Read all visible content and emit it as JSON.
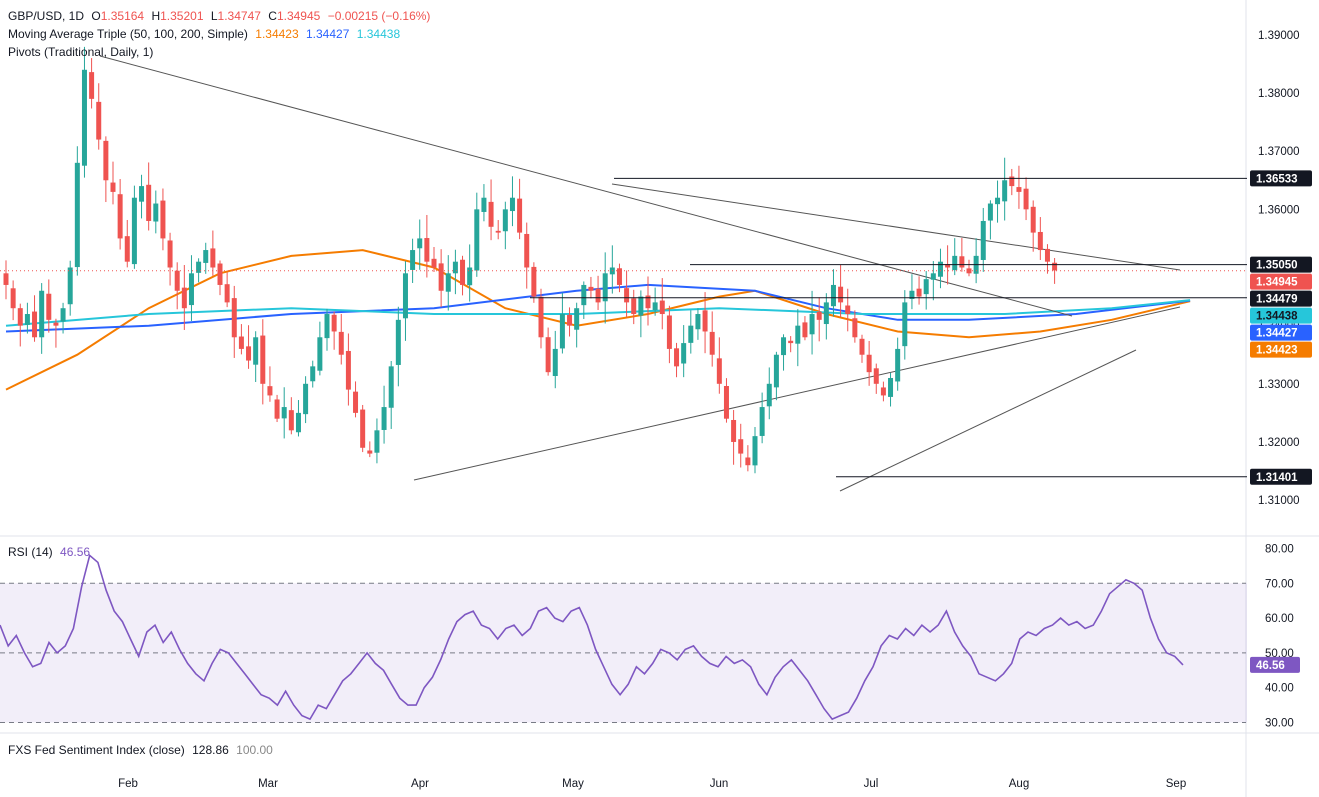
{
  "header": {
    "symbol": "GBP/USD, 1D",
    "o_label": "O",
    "o_value": "1.35164",
    "h_label": "H",
    "h_value": "1.35201",
    "l_label": "L",
    "l_value": "1.34747",
    "c_label": "C",
    "c_value": "1.34945",
    "change": "−0.00215 (−0.16%)",
    "ma_label": "Moving Average Triple (50, 100, 200, Simple)",
    "ma50_value": "1.34423",
    "ma100_value": "1.34427",
    "ma200_value": "1.34438",
    "pivots_label": "Pivots (Traditional, Daily, 1)",
    "rsi_label": "RSI (14)",
    "rsi_value": "46.56",
    "fxs_label": "FXS Fed Sentiment Index (close)",
    "fxs_close": "128.86",
    "fxs_level": "100.00"
  },
  "colors": {
    "up": "#26a69a",
    "down": "#ef5350",
    "ma50": "#f57c00",
    "ma100": "#2962ff",
    "ma200": "#26c6da",
    "rsi": "#7e57c2",
    "pivot": "#131722",
    "tag_dark": "#131722"
  },
  "price_tags": [
    {
      "label": "1.36533",
      "value": 1.36533,
      "style": "dark"
    },
    {
      "label": "1.35050",
      "value": 1.3505,
      "style": "dark"
    },
    {
      "label": "1.34945",
      "value": 1.34945,
      "style": "red"
    },
    {
      "label": "1.34479",
      "value": 1.34479,
      "style": "dark"
    },
    {
      "label": "1.34438",
      "value": 1.34438,
      "style": "ma200"
    },
    {
      "label": "1.34427",
      "value": 1.34427,
      "style": "ma100"
    },
    {
      "label": "1.34423",
      "value": 1.34423,
      "style": "ma50"
    },
    {
      "label": "1.31401",
      "value": 1.31401,
      "style": "dark"
    }
  ],
  "rsi_tag": {
    "label": "46.56",
    "value": 46.56
  },
  "chart_data": [
    {
      "type": "candlestick",
      "title": "GBP/USD, 1D",
      "x_ticks": [
        "Feb",
        "Mar",
        "Apr",
        "May",
        "Jun",
        "Jul",
        "Aug",
        "Sep"
      ],
      "y_ticks": [
        "1.39000",
        "1.38000",
        "1.37000",
        "1.36000",
        "1.35000",
        "1.34000",
        "1.33000",
        "1.32000",
        "1.31000"
      ],
      "y_tick_values": [
        1.39,
        1.38,
        1.37,
        1.36,
        1.35,
        1.34,
        1.33,
        1.32,
        1.31
      ],
      "ylim": [
        1.304,
        1.396
      ],
      "candle_count": 166,
      "candle_close_path": [
        1.347,
        1.343,
        1.34,
        1.342,
        1.338,
        1.346,
        1.341,
        1.34,
        1.343,
        1.35,
        1.368,
        1.384,
        1.379,
        1.372,
        1.365,
        1.363,
        1.355,
        1.351,
        1.362,
        1.364,
        1.358,
        1.361,
        1.355,
        1.35,
        1.346,
        1.343,
        1.349,
        1.351,
        1.353,
        1.35,
        1.347,
        1.344,
        1.338,
        1.336,
        1.334,
        1.338,
        1.33,
        1.328,
        1.324,
        1.326,
        1.322,
        1.325,
        1.33,
        1.333,
        1.338,
        1.342,
        1.339,
        1.335,
        1.329,
        1.325,
        1.319,
        1.318,
        1.322,
        1.326,
        1.333,
        1.341,
        1.349,
        1.353,
        1.355,
        1.351,
        1.35,
        1.346,
        1.349,
        1.351,
        1.347,
        1.35,
        1.36,
        1.362,
        1.357,
        1.356,
        1.36,
        1.362,
        1.356,
        1.35,
        1.345,
        1.338,
        1.332,
        1.336,
        1.342,
        1.34,
        1.343,
        1.347,
        1.346,
        1.344,
        1.349,
        1.35,
        1.347,
        1.344,
        1.342,
        1.345,
        1.343,
        1.344,
        1.342,
        1.336,
        1.333,
        1.337,
        1.34,
        1.342,
        1.339,
        1.335,
        1.33,
        1.324,
        1.32,
        1.318,
        1.316,
        1.321,
        1.326,
        1.33,
        1.335,
        1.338,
        1.337,
        1.34,
        1.338,
        1.342,
        1.341,
        1.344,
        1.347,
        1.344,
        1.342,
        1.338,
        1.335,
        1.332,
        1.33,
        1.328,
        1.331,
        1.336,
        1.344,
        1.346,
        1.345,
        1.348,
        1.349,
        1.351,
        1.35,
        1.352,
        1.35,
        1.349,
        1.352,
        1.358,
        1.361,
        1.362,
        1.365,
        1.364,
        1.363,
        1.36,
        1.356,
        1.353,
        1.351,
        1.3495
      ],
      "series": [
        {
          "name": "Moving Average Triple (50, 100, 200, Simple) 50",
          "last": 1.34423,
          "path": [
            [
              0,
              1.329
            ],
            [
              10,
              1.335
            ],
            [
              20,
              1.343
            ],
            [
              30,
              1.349
            ],
            [
              40,
              1.352
            ],
            [
              50,
              1.353
            ],
            [
              60,
              1.35
            ],
            [
              70,
              1.343
            ],
            [
              80,
              1.34
            ],
            [
              90,
              1.342
            ],
            [
              100,
              1.345
            ],
            [
              105,
              1.346
            ],
            [
              115,
              1.342
            ],
            [
              125,
              1.339
            ],
            [
              135,
              1.338
            ],
            [
              145,
              1.339
            ],
            [
              155,
              1.341
            ],
            [
              166,
              1.3442
            ]
          ]
        },
        {
          "name": "Moving Average Triple (50, 100, 200, Simple) 100",
          "last": 1.34427,
          "path": [
            [
              0,
              1.339
            ],
            [
              20,
              1.34
            ],
            [
              40,
              1.342
            ],
            [
              60,
              1.343
            ],
            [
              80,
              1.346
            ],
            [
              90,
              1.347
            ],
            [
              105,
              1.346
            ],
            [
              115,
              1.343
            ],
            [
              125,
              1.341
            ],
            [
              135,
              1.341
            ],
            [
              150,
              1.342
            ],
            [
              166,
              1.3443
            ]
          ]
        },
        {
          "name": "Moving Average Triple (50, 100, 200, Simple) 200",
          "last": 1.34438,
          "path": [
            [
              0,
              1.34
            ],
            [
              20,
              1.342
            ],
            [
              40,
              1.343
            ],
            [
              60,
              1.342
            ],
            [
              80,
              1.342
            ],
            [
              100,
              1.343
            ],
            [
              120,
              1.342
            ],
            [
              140,
              1.342
            ],
            [
              155,
              1.343
            ],
            [
              166,
              1.3444
            ]
          ]
        }
      ],
      "horizontal_levels": [
        1.36533,
        1.3505,
        1.34479,
        1.31401
      ],
      "current_price": 1.34945
    },
    {
      "type": "line",
      "title": "RSI (14)",
      "y_ticks": [
        "80.00",
        "70.00",
        "60.00",
        "50.00",
        "40.00",
        "30.00"
      ],
      "y_tick_values": [
        80,
        70,
        60,
        50,
        40,
        30
      ],
      "ylim": [
        27,
        83
      ],
      "band": [
        30,
        70
      ],
      "midline": 50,
      "series": [
        {
          "name": "RSI (14)",
          "last": 46.56,
          "values": [
            58,
            52,
            55,
            50,
            46,
            47,
            53,
            50,
            52,
            57,
            69,
            78,
            76,
            68,
            62,
            59,
            54,
            49,
            56,
            58,
            53,
            56,
            51,
            47,
            44,
            42,
            47,
            51,
            50,
            47,
            44,
            41,
            38,
            37,
            35,
            39,
            35,
            32,
            31,
            35,
            34,
            38,
            42,
            44,
            47,
            50,
            47,
            45,
            41,
            37,
            35,
            35,
            40,
            43,
            48,
            54,
            59,
            61,
            62,
            58,
            57,
            54,
            57,
            58,
            55,
            57,
            62,
            63,
            60,
            59,
            62,
            63,
            58,
            51,
            46,
            41,
            38,
            41,
            46,
            44,
            47,
            51,
            50,
            48,
            51,
            52,
            49,
            47,
            46,
            49,
            47,
            48,
            46,
            41,
            38,
            43,
            46,
            48,
            45,
            42,
            38,
            34,
            31,
            32,
            33,
            37,
            42,
            46,
            52,
            55,
            54,
            57,
            55,
            58,
            56,
            58,
            62,
            56,
            52,
            49,
            44,
            43,
            42,
            44,
            47,
            54,
            56,
            55,
            57,
            58,
            60,
            58,
            59,
            57,
            58,
            62,
            67,
            69,
            71,
            70,
            68,
            60,
            54,
            50,
            49,
            46.56
          ]
        }
      ]
    }
  ]
}
